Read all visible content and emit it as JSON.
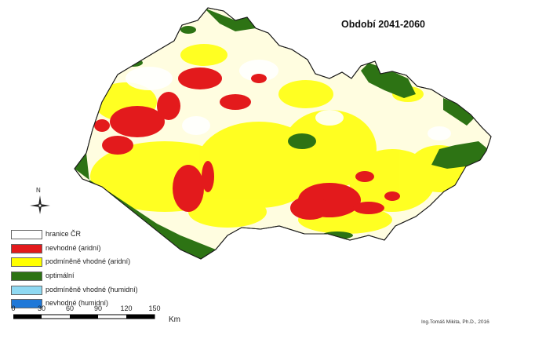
{
  "title": "Období 2041-2060",
  "legend": [
    {
      "label": "hranice ČR",
      "color": "#ffffff"
    },
    {
      "label": "nevhodné (aridní)",
      "color": "#e31a1c"
    },
    {
      "label": "podmíněně vhodné (aridní)",
      "color": "#ffff00"
    },
    {
      "label": "optimální",
      "color": "#2d7314"
    },
    {
      "label": "podmíněně vhodné (humidní)",
      "color": "#8fd9f2"
    },
    {
      "label": "nevhodné (humidní)",
      "color": "#1f78d8"
    }
  ],
  "north_label": "N",
  "scale": {
    "ticks": [
      "0",
      "30",
      "60",
      "90",
      "120",
      "150"
    ],
    "unit": "Km"
  },
  "credit": "Ing.Tomáš Mikita, Ph.D., 2016"
}
